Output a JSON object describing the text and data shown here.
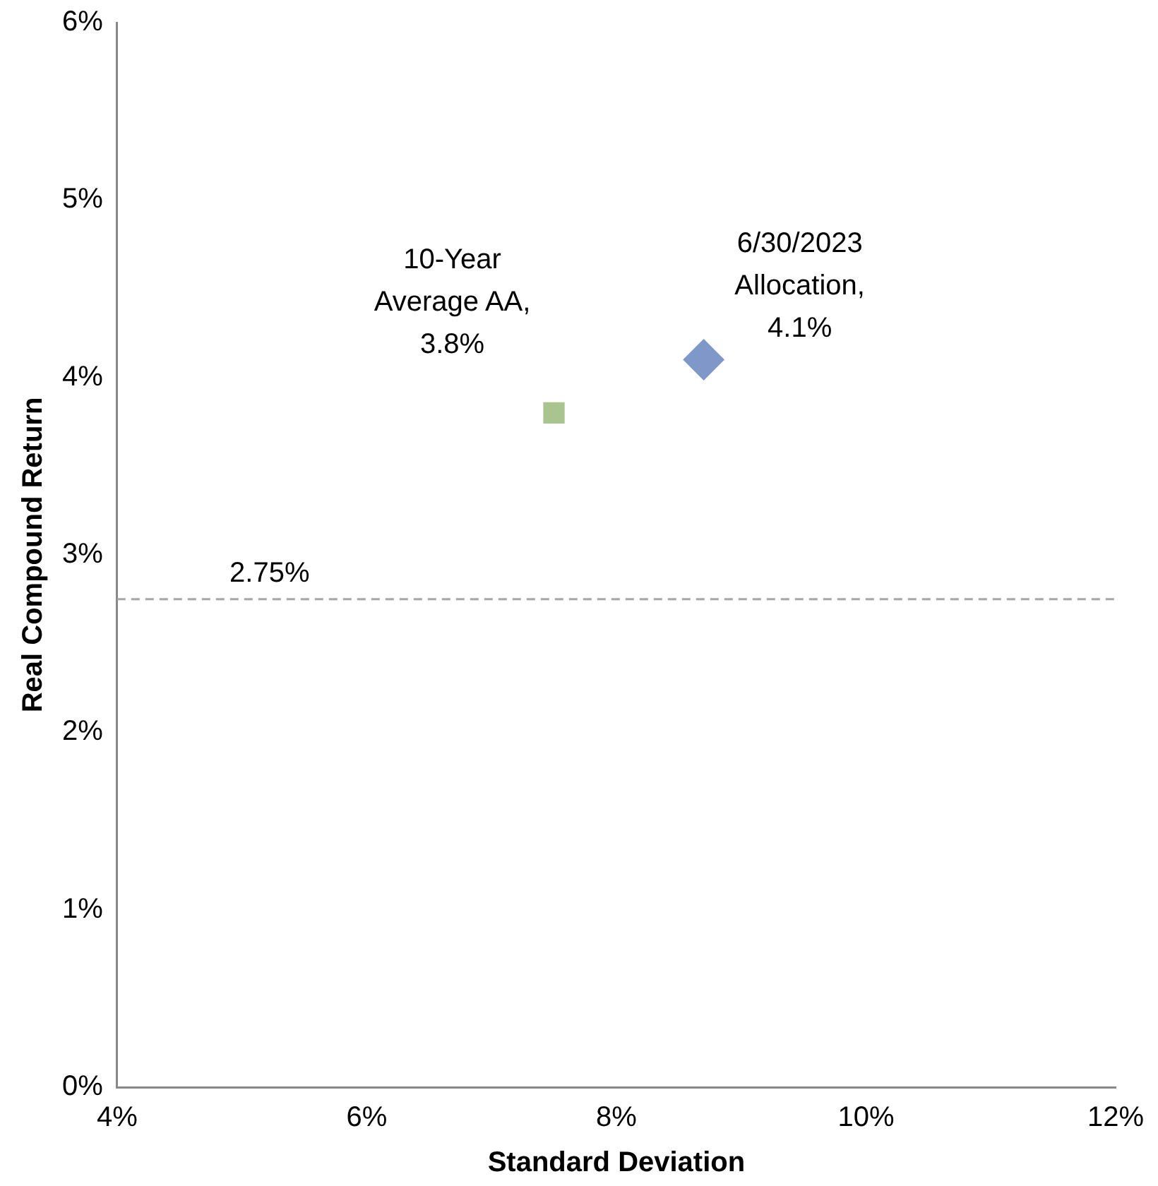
{
  "chart_data": {
    "type": "scatter",
    "xlabel": "Standard Deviation",
    "ylabel": "Real Compound Return",
    "xlim": [
      4,
      12
    ],
    "xticks": [
      {
        "value": 4,
        "label": "4%"
      },
      {
        "value": 6,
        "label": "6%"
      },
      {
        "value": 8,
        "label": "8%"
      },
      {
        "value": 10,
        "label": "10%"
      },
      {
        "value": 12,
        "label": "12%"
      }
    ],
    "ylim": [
      0,
      6
    ],
    "yticks": [
      {
        "value": 0,
        "label": "0%"
      },
      {
        "value": 1,
        "label": "1%"
      },
      {
        "value": 2,
        "label": "2%"
      },
      {
        "value": 3,
        "label": "3%"
      },
      {
        "value": 4,
        "label": "4%"
      },
      {
        "value": 5,
        "label": "5%"
      },
      {
        "value": 6,
        "label": "6%"
      }
    ],
    "grid": false,
    "legend": false,
    "series": [
      {
        "x": [
          7.5
        ],
        "values": [
          3.8
        ],
        "color": "#a9c48e",
        "marker": "square"
      },
      {
        "x": [
          8.7
        ],
        "values": [
          4.1
        ],
        "color": "#7f97c9",
        "marker": "diamond"
      }
    ],
    "ref_lines": [
      {
        "axis": "y",
        "value": 2.75,
        "label": "2.75%",
        "color": "#a6a6a6",
        "line_style": "dashed"
      }
    ],
    "annotations": [
      {
        "text": "10-Year Average AA, 3.8%",
        "x": 7.5,
        "y": 3.8
      },
      {
        "text": "6/30/2023 Allocation, 4.1%",
        "x": 8.7,
        "y": 4.1
      }
    ]
  }
}
